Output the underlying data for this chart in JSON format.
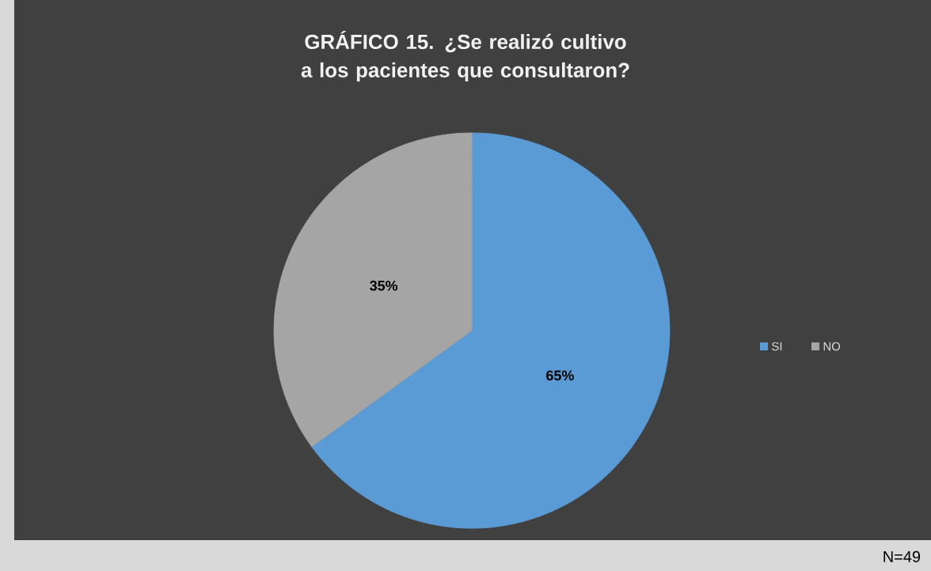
{
  "chart_data": {
    "type": "pie",
    "title": "GRÁFICO 15. ¿Se realizó cultivo a los pacientes que consultaron?",
    "categories": [
      "SI",
      "NO"
    ],
    "values": [
      65,
      35
    ],
    "colors": [
      "#5b9bd5",
      "#a5a5a5"
    ],
    "value_labels": [
      "65%",
      "35%"
    ],
    "legend": "right",
    "annotations": [
      "N=49"
    ]
  }
}
